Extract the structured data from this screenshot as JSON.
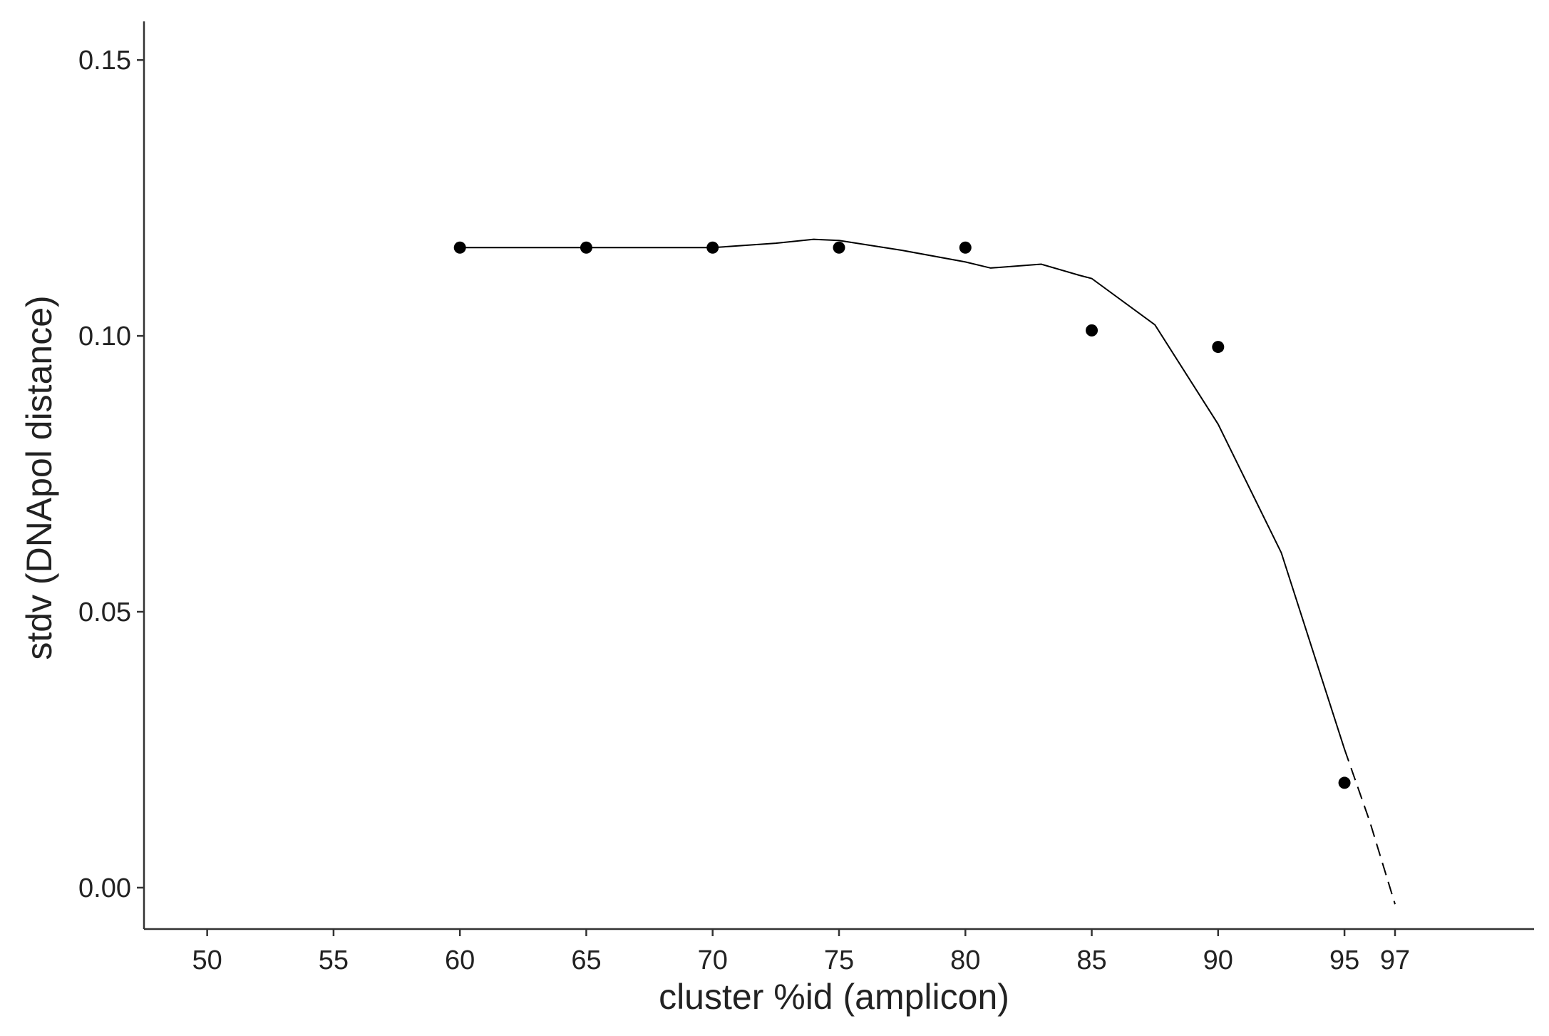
{
  "chart_data": {
    "type": "scatter",
    "x_label": "cluster %id (amplicon)",
    "y_label": "stdv (DNApol distance)",
    "xlim": [
      47.5,
      102.5
    ],
    "ylim": [
      -0.0075,
      0.157
    ],
    "xticks": [
      50,
      55,
      60,
      65,
      70,
      75,
      80,
      85,
      90,
      95,
      97
    ],
    "yticks": [
      {
        "value": 0,
        "label": "0.00"
      },
      {
        "value": 0.05,
        "label": "0.05"
      },
      {
        "value": 0.1,
        "label": "0.10"
      },
      {
        "value": 0.15,
        "label": "0.15"
      }
    ],
    "grid": false,
    "points": {
      "color": "#000000",
      "x": [
        60,
        65,
        70,
        75,
        80,
        85,
        90,
        95
      ],
      "y": [
        0.116,
        0.116,
        0.116,
        0.116,
        0.116,
        0.101,
        0.098,
        0.019
      ]
    },
    "fit": {
      "color": "#000000",
      "dashed": false,
      "x": [
        60,
        65,
        70,
        72.5,
        74,
        75,
        77.5,
        80,
        81,
        83,
        84.5,
        85,
        87.5,
        90,
        92.5,
        95
      ],
      "y": [
        0.116,
        0.116,
        0.116,
        0.1168,
        0.1175,
        0.1173,
        0.1155,
        0.1134,
        0.1123,
        0.113,
        0.111,
        0.1104,
        0.102,
        0.084,
        0.0607,
        0.0251
      ]
    },
    "extrapolation": {
      "color": "#000000",
      "dashed": true,
      "x": [
        95,
        96,
        97
      ],
      "y": [
        0.0251,
        0.012,
        -0.003
      ]
    }
  }
}
